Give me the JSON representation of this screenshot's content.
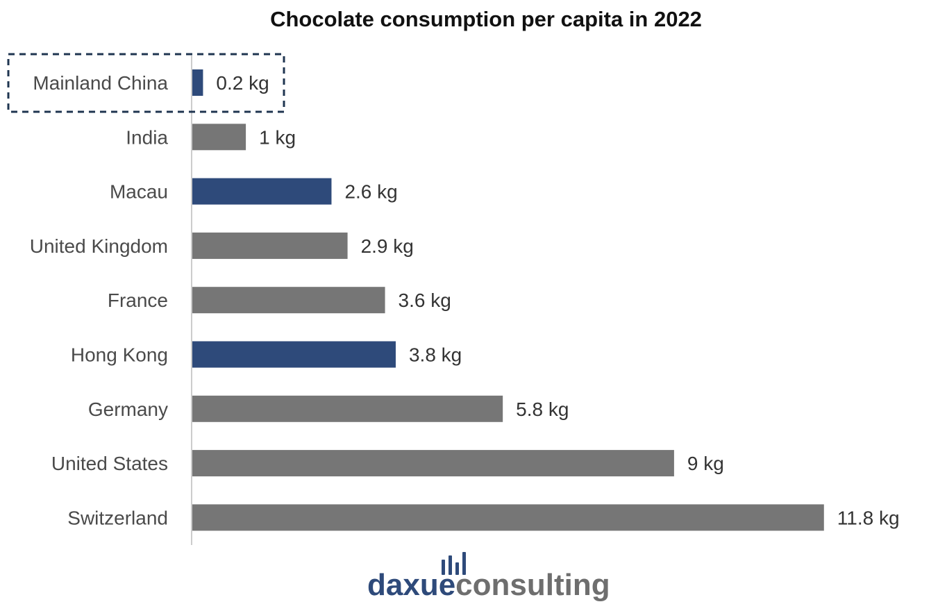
{
  "chart_data": {
    "type": "bar",
    "orientation": "horizontal",
    "title": "Chocolate consumption per capita in 2022",
    "xlabel": "",
    "ylabel": "",
    "unit": "kg",
    "categories": [
      "Mainland China",
      "India",
      "Macau",
      "United Kingdom",
      "France",
      "Hong Kong",
      "Germany",
      "United States",
      "Switzerland"
    ],
    "values": [
      0.2,
      1,
      2.6,
      2.9,
      3.6,
      3.8,
      5.8,
      9,
      11.8
    ],
    "value_labels": [
      "0.2 kg",
      "1 kg",
      "2.6 kg",
      "2.9 kg",
      "3.6 kg",
      "3.8 kg",
      "5.8 kg",
      "9 kg",
      "11.8 kg"
    ],
    "highlighted": [
      "Mainland China",
      "Macau",
      "Hong Kong"
    ],
    "boxed_category": "Mainland China",
    "xlim": [
      0,
      12
    ],
    "grid": false,
    "legend": "none",
    "colors": {
      "highlight": "#2e4a7a",
      "default": "#767676",
      "axis": "#cccccc",
      "dashed_box": "#1f3550"
    }
  },
  "logo": {
    "part1": "daxue",
    "part2": "consulting",
    "colors": {
      "part1": "#2e4a7a",
      "part2": "#6e6e6e"
    },
    "icon": "bar-chart-icon"
  }
}
